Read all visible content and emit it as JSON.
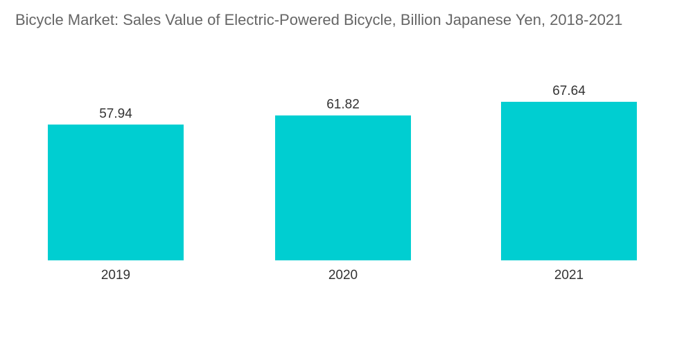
{
  "chart_data": {
    "type": "bar",
    "title": "Bicycle Market: Sales Value of Electric-Powered Bicycle, Billion Japanese Yen, 2018-2021",
    "categories": [
      "2019",
      "2020",
      "2021"
    ],
    "values": [
      57.94,
      61.82,
      67.64
    ],
    "value_labels": [
      "57.94",
      "61.82",
      "67.64"
    ],
    "xlabel": "",
    "ylabel": "",
    "ylim": [
      0,
      67.64
    ],
    "grid": false,
    "legend": "none",
    "bar_color": "#00CED1"
  }
}
